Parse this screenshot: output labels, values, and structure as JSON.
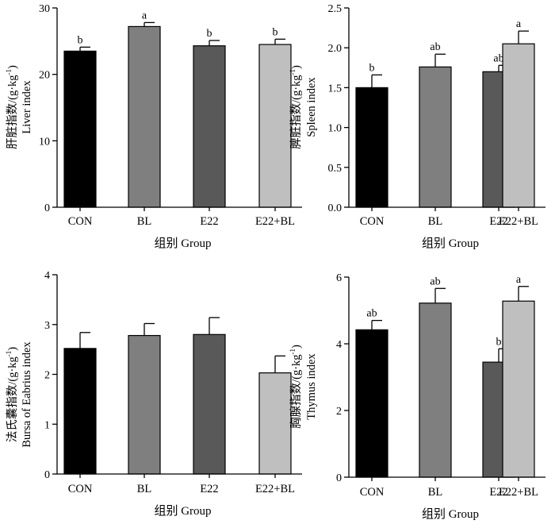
{
  "chart_data": [
    {
      "type": "bar",
      "categories": [
        "CON",
        "BL",
        "E22",
        "E22+BL"
      ],
      "values": [
        23.5,
        27.2,
        24.3,
        24.5
      ],
      "errors": [
        0.6,
        0.6,
        0.8,
        0.8
      ],
      "significance": [
        "b",
        "a",
        "b",
        "b"
      ],
      "colors": [
        "#000000",
        "#7f7f7f",
        "#595959",
        "#bfbfbf"
      ],
      "ylim": [
        0,
        30
      ],
      "yticks": [
        0,
        10,
        20,
        30
      ],
      "xlabel": "组别 Group",
      "ylabel_line1": "肝脏指数/(g·kg",
      "ylabel_sup": "-1",
      "ylabel_close": ")",
      "ylabel_line2": "Liver index",
      "grid": false,
      "legend": "none"
    },
    {
      "type": "bar",
      "categories": [
        "CON",
        "BL",
        "E22",
        "E22+BL"
      ],
      "values": [
        1.5,
        1.76,
        1.7,
        2.05
      ],
      "errors": [
        0.16,
        0.16,
        0.08,
        0.16
      ],
      "significance": [
        "b",
        "ab",
        "ab",
        "a"
      ],
      "colors": [
        "#000000",
        "#7f7f7f",
        "#595959",
        "#bfbfbf"
      ],
      "ylim": [
        0,
        2.5
      ],
      "yticks": [
        0,
        0.5,
        1.0,
        1.5,
        2.0,
        2.5
      ],
      "ytick_labels": [
        "0.0",
        "0.5",
        "1.0",
        "1.5",
        "2.0",
        "2.5"
      ],
      "xlabel": "组别 Group",
      "ylabel_line1": "脾脏指数/(g·kg",
      "ylabel_sup": "-1",
      "ylabel_close": ")",
      "ylabel_line2": "Spleen index",
      "grid": false,
      "legend": "none"
    },
    {
      "type": "bar",
      "categories": [
        "CON",
        "BL",
        "E22",
        "E22+BL"
      ],
      "values": [
        2.52,
        2.78,
        2.8,
        2.03
      ],
      "errors": [
        0.32,
        0.24,
        0.34,
        0.34
      ],
      "significance": [
        "",
        "",
        "",
        ""
      ],
      "colors": [
        "#000000",
        "#7f7f7f",
        "#595959",
        "#bfbfbf"
      ],
      "ylim": [
        0,
        4
      ],
      "yticks": [
        0,
        1,
        2,
        3,
        4
      ],
      "xlabel": "组别 Group",
      "ylabel_line1": "法氏囊指数/(g·kg",
      "ylabel_sup": "-1",
      "ylabel_close": ")",
      "ylabel_line2": "Bursa of Eabrius index",
      "grid": false,
      "legend": "none"
    },
    {
      "type": "bar",
      "categories": [
        "CON",
        "BL",
        "E22",
        "E22+BL"
      ],
      "values": [
        4.42,
        5.22,
        3.45,
        5.28
      ],
      "errors": [
        0.28,
        0.44,
        0.4,
        0.44
      ],
      "significance": [
        "ab",
        "ab",
        "b",
        "a"
      ],
      "colors": [
        "#000000",
        "#7f7f7f",
        "#595959",
        "#bfbfbf"
      ],
      "ylim": [
        0,
        6
      ],
      "yticks": [
        0,
        2,
        4,
        6
      ],
      "xlabel": "组别 Group",
      "ylabel_line1": "胸腺指数/(g·kg",
      "ylabel_sup": "-1",
      "ylabel_close": ")",
      "ylabel_line2": "Thymus index",
      "grid": false,
      "legend": "none"
    }
  ]
}
